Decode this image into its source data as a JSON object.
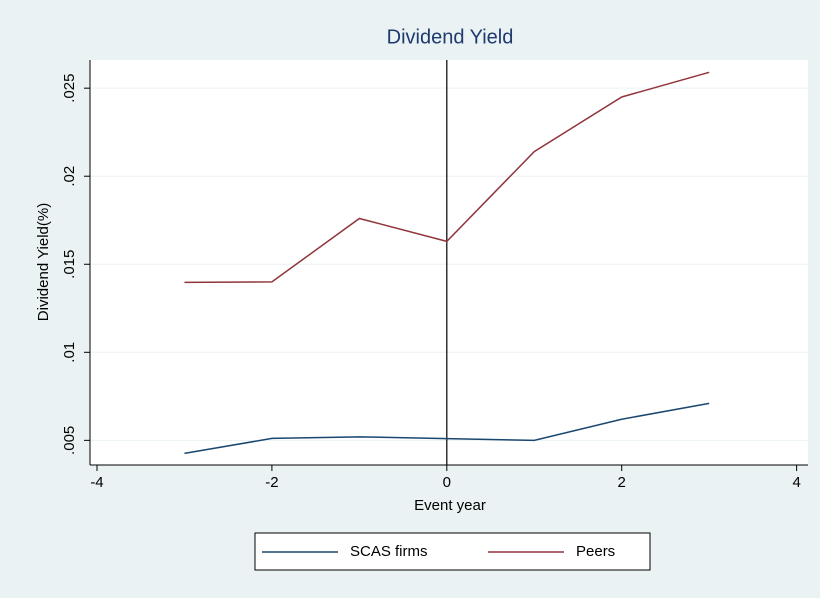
{
  "chart_data": {
    "type": "line",
    "title": "Dividend Yield",
    "x_label": "Event year",
    "y_label": "Dividend Yield(%)",
    "x": [
      -3,
      -2,
      -1,
      0,
      1,
      2,
      3
    ],
    "series": [
      {
        "name": "SCAS firms",
        "color": "#1a476f",
        "values": [
          0.00426,
          0.00511,
          0.0052,
          0.0051,
          0.005,
          0.0062,
          0.0071
        ]
      },
      {
        "name": "Peers",
        "color": "#90353b",
        "values": [
          0.01397,
          0.014,
          0.0176,
          0.0163,
          0.0214,
          0.0245,
          0.0259
        ]
      }
    ],
    "xlim": [
      -4.08,
      4.13
    ],
    "ylim": [
      0.0036,
      0.0266
    ],
    "xticks": [
      -4,
      -2,
      0,
      2,
      4
    ],
    "yticks": [
      {
        "value": 0.005,
        "label": ".005"
      },
      {
        "value": 0.01,
        "label": ".01"
      },
      {
        "value": 0.015,
        "label": ".015"
      },
      {
        "value": 0.02,
        "label": ".02"
      },
      {
        "value": 0.025,
        "label": ".025"
      }
    ],
    "grid": true,
    "xline": 0,
    "legend": "bottom"
  }
}
